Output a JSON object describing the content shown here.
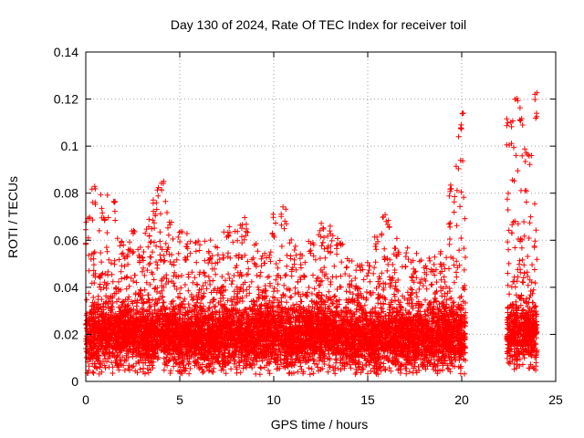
{
  "chart_data": {
    "type": "scatter",
    "title": "Day 130 of 2024, Rate Of TEC Index for receiver toil",
    "xlabel": "GPS time / hours",
    "ylabel": "ROTI / TECUs",
    "xlim": [
      0,
      25
    ],
    "ylim": [
      0,
      0.14
    ],
    "xticks": [
      0,
      5,
      10,
      15,
      20,
      25
    ],
    "xtick_labels": [
      "0",
      "5",
      "10",
      "15",
      "20",
      "25"
    ],
    "yticks": [
      0,
      0.02,
      0.04,
      0.06,
      0.08,
      0.1,
      0.12,
      0.14
    ],
    "ytick_labels": [
      "0",
      "0.02",
      "0.04",
      "0.06",
      "0.08",
      "0.1",
      "0.12",
      "0.14"
    ],
    "grid": true,
    "marker": "+",
    "series_color": "#ff0000",
    "coverage_intervals_hours": [
      [
        0.0,
        20.2
      ],
      [
        22.4,
        24.0
      ]
    ],
    "data_gap_hours": [
      20.2,
      22.4
    ],
    "envelope": {
      "hours": [
        0.0,
        0.5,
        1.0,
        1.5,
        2.0,
        2.5,
        3.0,
        3.5,
        4.0,
        4.5,
        5.0,
        5.5,
        6.0,
        6.5,
        7.0,
        7.5,
        8.0,
        8.5,
        9.0,
        9.5,
        10.0,
        10.5,
        11.0,
        11.5,
        12.0,
        12.5,
        13.0,
        13.5,
        14.0,
        14.5,
        15.0,
        15.5,
        16.0,
        16.5,
        17.0,
        17.5,
        18.0,
        18.5,
        19.0,
        19.5,
        20.0,
        22.5,
        23.0,
        23.5,
        24.0
      ],
      "median": [
        0.018,
        0.019,
        0.02,
        0.019,
        0.02,
        0.019,
        0.018,
        0.019,
        0.021,
        0.019,
        0.018,
        0.018,
        0.019,
        0.018,
        0.018,
        0.019,
        0.019,
        0.018,
        0.019,
        0.019,
        0.02,
        0.019,
        0.018,
        0.019,
        0.02,
        0.02,
        0.02,
        0.019,
        0.019,
        0.018,
        0.018,
        0.017,
        0.019,
        0.018,
        0.018,
        0.018,
        0.017,
        0.018,
        0.018,
        0.019,
        0.019,
        0.02,
        0.02,
        0.021,
        0.02
      ],
      "max": [
        0.07,
        0.085,
        0.08,
        0.08,
        0.06,
        0.065,
        0.06,
        0.075,
        0.087,
        0.072,
        0.064,
        0.063,
        0.062,
        0.062,
        0.058,
        0.066,
        0.065,
        0.07,
        0.06,
        0.056,
        0.073,
        0.076,
        0.06,
        0.055,
        0.064,
        0.068,
        0.066,
        0.062,
        0.054,
        0.05,
        0.053,
        0.066,
        0.074,
        0.063,
        0.057,
        0.056,
        0.052,
        0.054,
        0.058,
        0.088,
        0.116,
        0.112,
        0.121,
        0.1,
        0.123
      ],
      "min_floor": 0.003
    }
  }
}
